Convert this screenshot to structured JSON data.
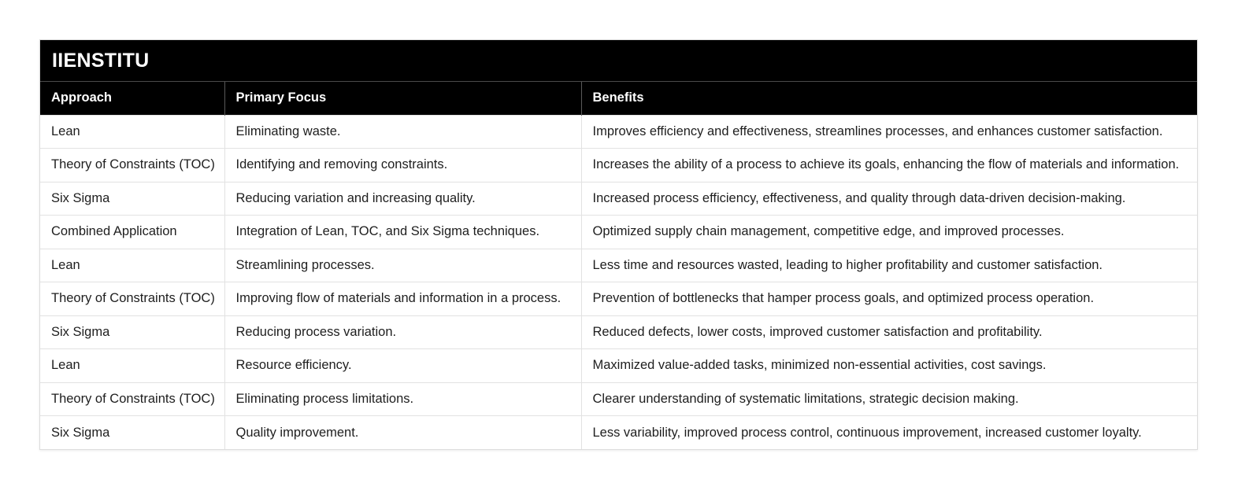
{
  "brand": "IIENSTITU",
  "columns": [
    "Approach",
    "Primary Focus",
    "Benefits"
  ],
  "rows": [
    [
      "Lean",
      "Eliminating waste.",
      "Improves efficiency and effectiveness, streamlines processes, and enhances customer satisfaction."
    ],
    [
      "Theory of Constraints (TOC)",
      "Identifying and removing constraints.",
      "Increases the ability of a process to achieve its goals, enhancing the flow of materials and information."
    ],
    [
      "Six Sigma",
      "Reducing variation and increasing quality.",
      "Increased process efficiency, effectiveness, and quality through data-driven decision-making."
    ],
    [
      "Combined Application",
      "Integration of Lean, TOC, and Six Sigma techniques.",
      "Optimized supply chain management, competitive edge, and improved processes."
    ],
    [
      "Lean",
      "Streamlining processes.",
      "Less time and resources wasted, leading to higher profitability and customer satisfaction."
    ],
    [
      "Theory of Constraints (TOC)",
      "Improving flow of materials and information in a process.",
      "Prevention of bottlenecks that hamper process goals, and optimized process operation."
    ],
    [
      "Six Sigma",
      "Reducing process variation.",
      "Reduced defects, lower costs, improved customer satisfaction and profitability."
    ],
    [
      "Lean",
      "Resource efficiency.",
      "Maximized value-added tasks, minimized non-essential activities, cost savings."
    ],
    [
      "Theory of Constraints (TOC)",
      "Eliminating process limitations.",
      "Clearer understanding of systematic limitations, strategic decision making."
    ],
    [
      "Six Sigma",
      "Quality improvement.",
      "Less variability, improved process control, continuous improvement, increased customer loyalty."
    ]
  ]
}
